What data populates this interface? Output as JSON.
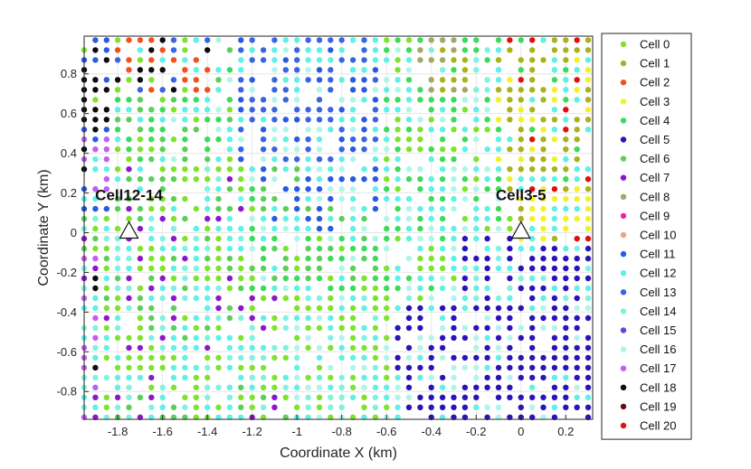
{
  "chart_data": {
    "type": "scatter",
    "title": "",
    "xlabel": "Coordinate X (km)",
    "ylabel": "Coordinate Y (km)",
    "xlim": [
      -1.95,
      0.32
    ],
    "ylim": [
      -0.94,
      0.99
    ],
    "grid": true,
    "legend_position": "outside-right",
    "x_ticks": [
      -1.8,
      -1.6,
      -1.4,
      -1.2,
      -1,
      -0.8,
      -0.6,
      -0.4,
      -0.2,
      0,
      0.2
    ],
    "x_tick_labels": [
      "-1.8",
      "-1.6",
      "-1.4",
      "-1.2",
      "-1",
      "-0.8",
      "-0.6",
      "-0.4",
      "-0.2",
      "0",
      "0.2"
    ],
    "y_ticks": [
      -0.8,
      -0.6,
      -0.4,
      -0.2,
      0,
      0.2,
      0.4,
      0.6,
      0.8
    ],
    "y_tick_labels": [
      "-0.8",
      "-0.6",
      "-0.4",
      "-0.2",
      "0",
      "0.2",
      "0.4",
      "0.6",
      "0.8"
    ],
    "grid_spacing_km": 0.05,
    "series": [
      {
        "name": "Cell 0",
        "color": "#7fe32e"
      },
      {
        "name": "Cell 1",
        "color": "#aab21c"
      },
      {
        "name": "Cell 2",
        "color": "#f0521e"
      },
      {
        "name": "Cell 3",
        "color": "#f2f22a"
      },
      {
        "name": "Cell 4",
        "color": "#3ddb5a"
      },
      {
        "name": "Cell 5",
        "color": "#2a14b8"
      },
      {
        "name": "Cell 6",
        "color": "#5ccf5a"
      },
      {
        "name": "Cell 7",
        "color": "#8b18c8"
      },
      {
        "name": "Cell 8",
        "color": "#a3a868"
      },
      {
        "name": "Cell 9",
        "color": "#f21eb4"
      },
      {
        "name": "Cell 10",
        "color": "#f2a08a"
      },
      {
        "name": "Cell 11",
        "color": "#2a5ae0"
      },
      {
        "name": "Cell 12",
        "color": "#5ff0e6"
      },
      {
        "name": "Cell 13",
        "color": "#3a64e2"
      },
      {
        "name": "Cell 14",
        "color": "#7ff2e0"
      },
      {
        "name": "Cell 15",
        "color": "#6a42d8"
      },
      {
        "name": "Cell 16",
        "color": "#aef5ea"
      },
      {
        "name": "Cell 17",
        "color": "#c25ef0"
      },
      {
        "name": "Cell 18",
        "color": "#0c0c0c"
      },
      {
        "name": "Cell 19",
        "color": "#6a0c0c"
      },
      {
        "name": "Cell 20",
        "color": "#e01010"
      }
    ],
    "sites": [
      {
        "label": "Cell12-14",
        "x": -1.75,
        "y": 0.0
      },
      {
        "label": "Cell3-5",
        "x": 0.0,
        "y": 0.0
      }
    ]
  }
}
